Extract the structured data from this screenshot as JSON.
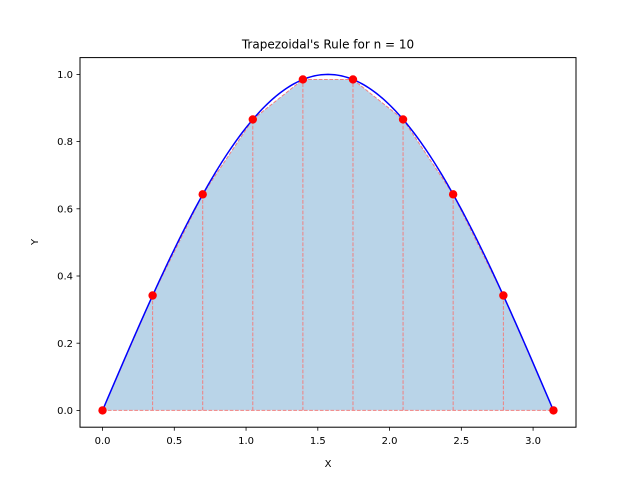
{
  "chart_data": {
    "type": "line",
    "title": "Trapezoidal's Rule for n = 10",
    "xlabel": "X",
    "ylabel": "Y",
    "xlim": [
      -0.157,
      3.299
    ],
    "ylim": [
      -0.05,
      1.05
    ],
    "xticks": [
      0.0,
      0.5,
      1.0,
      1.5,
      2.0,
      2.5,
      3.0
    ],
    "xtick_labels": [
      "0.0",
      "0.5",
      "1.0",
      "1.5",
      "2.0",
      "2.5",
      "3.0"
    ],
    "yticks": [
      0.0,
      0.2,
      0.4,
      0.6,
      0.8,
      1.0
    ],
    "ytick_labels": [
      "0.0",
      "0.2",
      "0.4",
      "0.6",
      "0.8",
      "1.0"
    ],
    "grid": false,
    "legend": null,
    "series": [
      {
        "name": "sin(x) curve",
        "kind": "line",
        "color": "#0000ff",
        "function": "sin(x)",
        "x_range": [
          0,
          3.14159
        ]
      },
      {
        "name": "trapezoid nodes",
        "kind": "scatter",
        "color": "#ff0000",
        "x": [
          0.0,
          0.349,
          0.698,
          1.047,
          1.396,
          1.745,
          2.094,
          2.443,
          2.793,
          3.142
        ],
        "y": [
          0.0,
          0.342,
          0.643,
          0.866,
          0.985,
          0.985,
          0.866,
          0.643,
          0.342,
          0.0
        ]
      },
      {
        "name": "trapezoid area",
        "kind": "area",
        "fill_color": "#b9d4e8",
        "edge_color": "#f08080",
        "edge_style": "dashed",
        "x": [
          0.0,
          0.349,
          0.698,
          1.047,
          1.396,
          1.745,
          2.094,
          2.443,
          2.793,
          3.142
        ],
        "y": [
          0.0,
          0.342,
          0.643,
          0.866,
          0.985,
          0.985,
          0.866,
          0.643,
          0.342,
          0.0
        ]
      }
    ]
  },
  "colors": {
    "curve": "#0000ff",
    "points": "#ff0000",
    "fill": "#b9d4e8",
    "dash": "#f08080"
  }
}
